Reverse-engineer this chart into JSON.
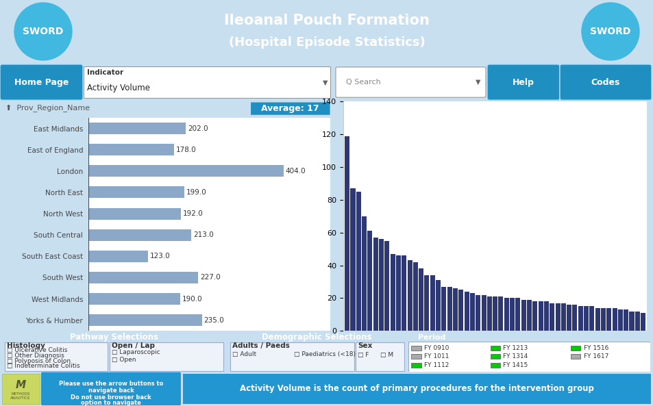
{
  "title_line1": "Ileoanal Pouch Formation",
  "title_line2": "(Hospital Episode Statistics)",
  "title_bg": "#2b9fd4",
  "title_color": "white",
  "sword_text": "SWORD",
  "sword_circle_color": "#40b8e0",
  "navbar_bg": "#1e8fc0",
  "bar_categories": [
    "East Midlands",
    "East of England",
    "London",
    "North East",
    "North West",
    "South Central",
    "South East Coast",
    "South West",
    "West Midlands",
    "Yorks & Humber"
  ],
  "bar_values": [
    202.0,
    178.0,
    404.0,
    199.0,
    192.0,
    213.0,
    123.0,
    227.0,
    190.0,
    235.0
  ],
  "bar_color": "#8ba8c8",
  "avg_label": "Average: 17",
  "avg_bg": "#1e8fc0",
  "prov_label": "Prov_Region_Name",
  "right_bar_values": [
    119,
    87,
    85,
    70,
    61,
    57,
    56,
    55,
    47,
    46,
    46,
    43,
    42,
    38,
    34,
    34,
    31,
    27,
    27,
    26,
    25,
    24,
    23,
    22,
    22,
    21,
    21,
    21,
    20,
    20,
    20,
    19,
    19,
    18,
    18,
    18,
    17,
    17,
    17,
    16,
    16,
    15,
    15,
    15,
    14,
    14,
    14,
    14,
    13,
    13,
    12,
    12,
    11
  ],
  "right_bar_color": "#2d3875",
  "right_ylim": [
    0,
    140
  ],
  "right_yticks": [
    0,
    20,
    40,
    60,
    80,
    100,
    120,
    140
  ],
  "outer_bg": "#c8dff0",
  "panel_border": "#aaccee",
  "pathway_title": "Pathway Selections",
  "section_header_bg": "#1e8fc0",
  "demographic_title": "Demographic Selections",
  "histology_label": "Histology",
  "histology_items": [
    "Ulcerative Colitis",
    "Other Diagnosis",
    "Polyposis of Colon",
    "Indeterminate Colitis"
  ],
  "open_lap_label": "Open / Lap",
  "open_lap_items": [
    "Laparoscopic",
    "Open"
  ],
  "adults_paeds_label": "Adults / Paeds",
  "sex_label": "Sex",
  "period_label": "Period",
  "period_items": [
    "FY 0910",
    "FY 1011",
    "FY 1112",
    "FY 1213",
    "FY 1314",
    "FY 1415",
    "FY 1516",
    "FY 1617"
  ],
  "period_colors": [
    "#aaaaaa",
    "#aaaaaa",
    "#00cc00",
    "#00cc00",
    "#00cc00",
    "#00cc00",
    "#00cc00",
    "#aaaaaa"
  ],
  "bottom_text2": "Activity Volume is the count of primary procedures for the intervention group",
  "bottom_bg": "#c8d860",
  "bottom_text_bg": "#2196d0",
  "footer_note_bg": "#2196d0"
}
